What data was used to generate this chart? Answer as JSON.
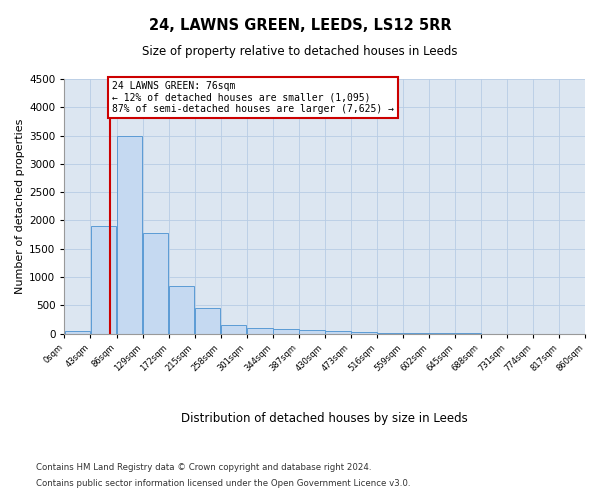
{
  "title1": "24, LAWNS GREEN, LEEDS, LS12 5RR",
  "title2": "Size of property relative to detached houses in Leeds",
  "xlabel": "Distribution of detached houses by size in Leeds",
  "ylabel": "Number of detached properties",
  "annotation_line1": "24 LAWNS GREEN: 76sqm",
  "annotation_line2": "← 12% of detached houses are smaller (1,095)",
  "annotation_line3": "87% of semi-detached houses are larger (7,625) →",
  "property_size_sqm": 76,
  "bin_edges": [
    0,
    43,
    86,
    129,
    172,
    215,
    258,
    301,
    344,
    387,
    430,
    473,
    516,
    559,
    602,
    645,
    688,
    731,
    774,
    817,
    860
  ],
  "bar_heights": [
    50,
    1900,
    3500,
    1775,
    850,
    450,
    160,
    100,
    75,
    60,
    50,
    35,
    20,
    10,
    8,
    5,
    3,
    2,
    1,
    1
  ],
  "bar_color": "#c5d9f1",
  "bar_edge_color": "#5b9bd5",
  "red_line_color": "#cc0000",
  "annotation_box_edgecolor": "#cc0000",
  "plot_bg_color": "#dce6f1",
  "background_color": "#ffffff",
  "grid_color": "#b8cce4",
  "ylim": [
    0,
    4500
  ],
  "yticks": [
    0,
    500,
    1000,
    1500,
    2000,
    2500,
    3000,
    3500,
    4000,
    4500
  ],
  "footnote1": "Contains HM Land Registry data © Crown copyright and database right 2024.",
  "footnote2": "Contains public sector information licensed under the Open Government Licence v3.0."
}
